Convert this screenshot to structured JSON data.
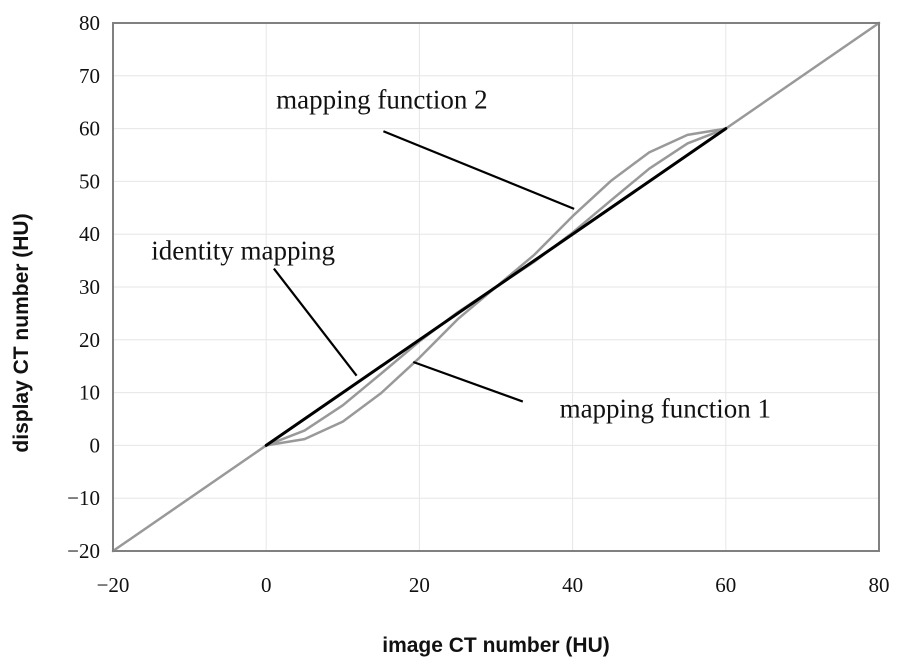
{
  "chart_data": {
    "type": "line",
    "xlabel": "image CT number (HU)",
    "ylabel": "display CT number (HU)",
    "xlim": [
      -20,
      80
    ],
    "ylim": [
      -20,
      80
    ],
    "xticks": [
      -20,
      0,
      20,
      40,
      60,
      80
    ],
    "yticks": [
      -20,
      -10,
      0,
      10,
      20,
      30,
      40,
      50,
      60,
      70,
      80
    ],
    "grid": true,
    "colors": {
      "identity": "#000000",
      "mapping": "#999999",
      "grid": "#e6e6e6",
      "frame": "#808080"
    },
    "series": [
      {
        "key": "diagonal",
        "x": [
          -20,
          80
        ],
        "y": [
          -20,
          80
        ]
      },
      {
        "key": "identity",
        "x": [
          0,
          60
        ],
        "y": [
          0,
          60
        ]
      },
      {
        "key": "mapping1",
        "x": [
          0,
          5,
          10,
          15,
          20,
          25,
          30,
          35,
          40,
          45,
          50,
          55,
          60
        ],
        "y": [
          0,
          2.8,
          7.6,
          13.6,
          19.7,
          25.2,
          30,
          34.8,
          40.3,
          46.4,
          52.4,
          57.2,
          60
        ]
      },
      {
        "key": "mapping2",
        "x": [
          0,
          5,
          10,
          15,
          20,
          25,
          30,
          35,
          40,
          45,
          50,
          55,
          60
        ],
        "y": [
          0,
          1.2,
          4.5,
          9.9,
          16.6,
          23.9,
          30,
          36.1,
          43.4,
          50.1,
          55.5,
          58.8,
          60
        ]
      }
    ],
    "annotations": [
      {
        "key": "identity",
        "text": "identity mapping",
        "x": -15,
        "y": 35.2,
        "line_from": [
          1,
          33.5
        ],
        "line_to": [
          11.8,
          13.2
        ]
      },
      {
        "key": "mapping1",
        "text": "mapping function 1",
        "x": 38.3,
        "y": 5.3,
        "line_from": [
          33.5,
          8.3
        ],
        "line_to": [
          19.2,
          15.8
        ]
      },
      {
        "key": "mapping2",
        "text": "mapping function 2",
        "x": 1.3,
        "y": 63.8,
        "line_from": [
          15.3,
          59.5
        ],
        "line_to": [
          40.2,
          44.8
        ]
      }
    ]
  }
}
